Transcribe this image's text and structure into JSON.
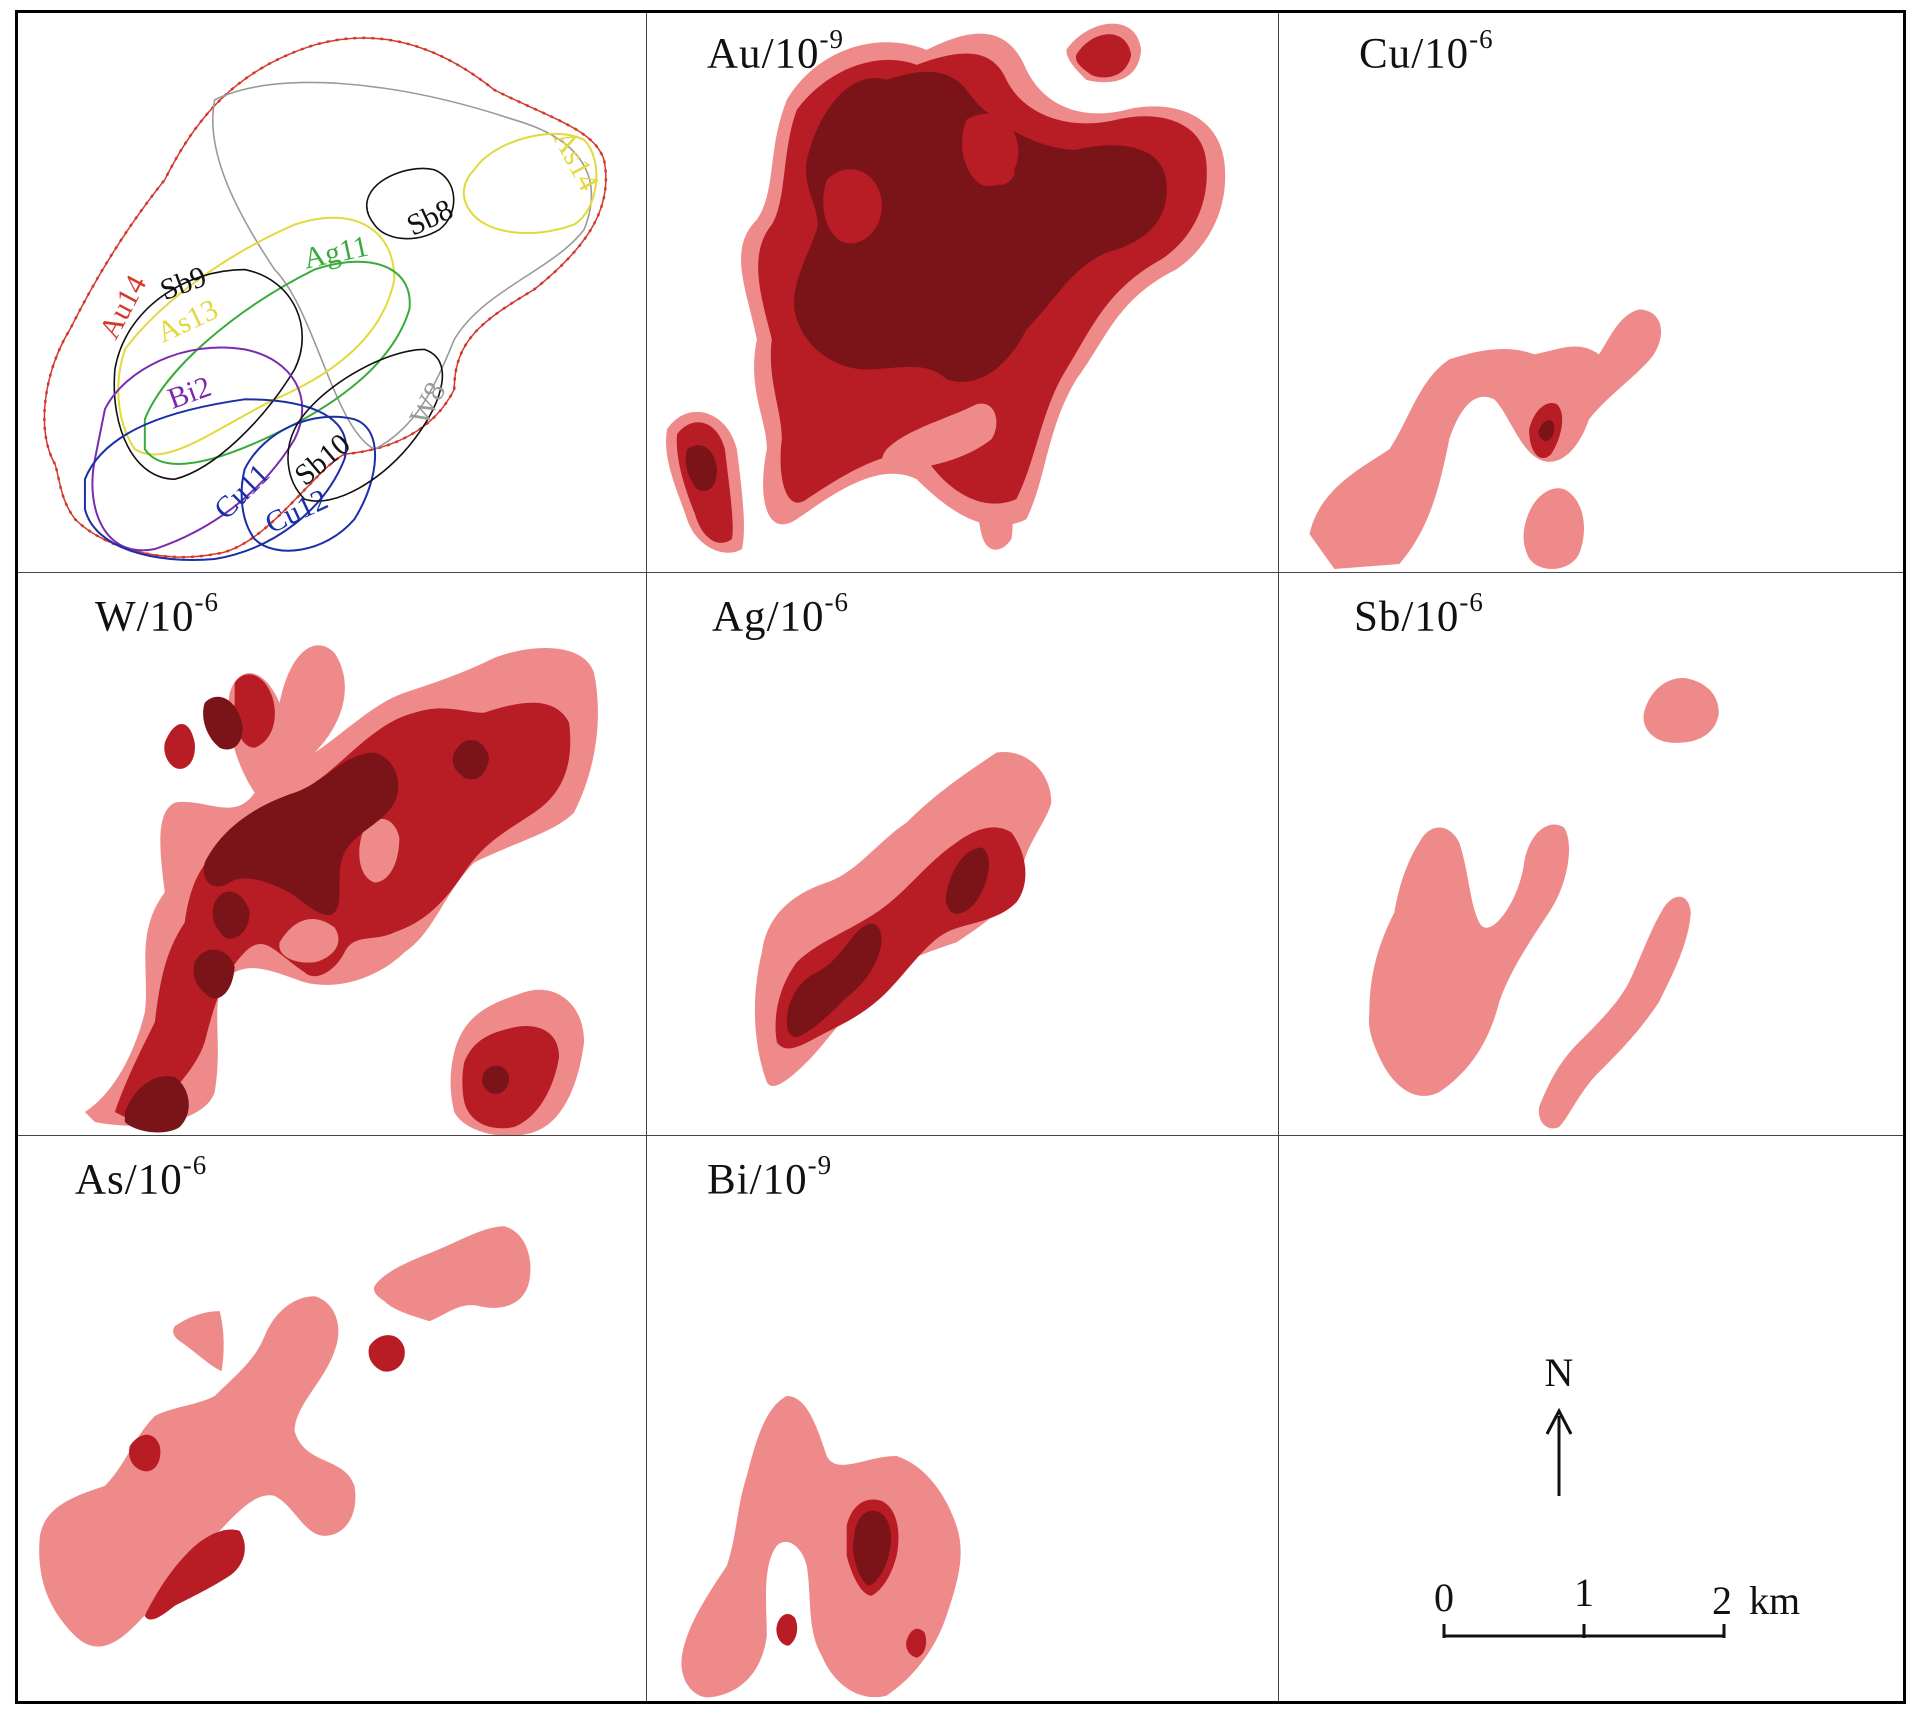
{
  "colors": {
    "light": "#ee8a8a",
    "mid": "#b81c24",
    "dark": "#7a1418",
    "overlay_au": "#d23a2e",
    "overlay_as": "#e2d93a",
    "overlay_ag": "#3aaa3a",
    "overlay_cu": "#1a2ea8",
    "overlay_bi": "#7a2ab0",
    "overlay_sb": "#111111",
    "overlay_w": "#9a9a9a"
  },
  "panels": [
    {
      "id": "overlay",
      "overlay_labels": {
        "au14": "Au14",
        "as14": "As14",
        "sb8": "Sb8",
        "sb9": "Sb9",
        "as13": "As13",
        "ag11": "Ag11",
        "bi2": "Bi2",
        "w8": "W8",
        "cu11": "Cu11",
        "sb10": "Sb10",
        "cu12": "Cu12"
      }
    },
    {
      "id": "au",
      "element": "Au",
      "unit_base": "/10",
      "exponent": "-9"
    },
    {
      "id": "cu",
      "element": "Cu",
      "unit_base": "/10",
      "exponent": "-6"
    },
    {
      "id": "w",
      "element": "W",
      "unit_base": "/10",
      "exponent": "-6"
    },
    {
      "id": "ag",
      "element": "Ag",
      "unit_base": "/10",
      "exponent": "-6"
    },
    {
      "id": "sb",
      "element": "Sb",
      "unit_base": "/10",
      "exponent": "-6"
    },
    {
      "id": "as",
      "element": "As",
      "unit_base": "/10",
      "exponent": "-6"
    },
    {
      "id": "bi",
      "element": "Bi",
      "unit_base": "/10",
      "exponent": "-9"
    },
    {
      "id": "legend"
    }
  ],
  "north_arrow": {
    "label": "N"
  },
  "scale_bar": {
    "ticks": [
      "0",
      "1",
      "2"
    ],
    "unit": "km"
  }
}
